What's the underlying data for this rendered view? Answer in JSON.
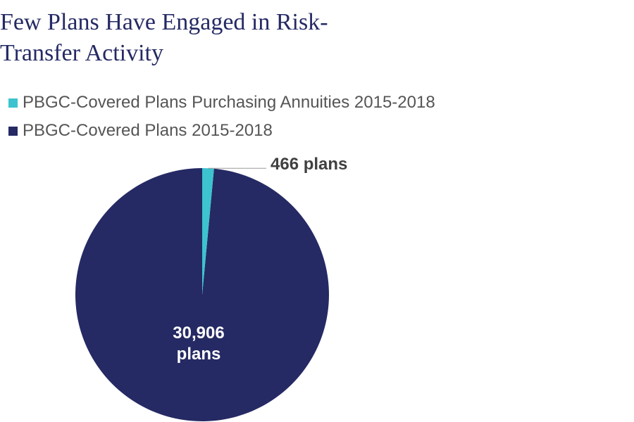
{
  "title_lines": [
    "Few Plans Have Engaged in Risk-",
    "Transfer Activity"
  ],
  "chart_data": {
    "type": "pie",
    "title": "Few Plans Have Engaged in Risk-Transfer Activity",
    "series": [
      {
        "name": "PBGC-Covered Plans Purchasing Annuities 2015-2018",
        "value": 466,
        "label": "466 plans",
        "color": "#3cc3cf"
      },
      {
        "name": "PBGC-Covered Plans 2015-2018",
        "value": 30906,
        "label_lines": [
          "30,906",
          "plans"
        ],
        "color": "#252a64"
      }
    ],
    "legend": "top-left",
    "start_angle_deg": 0,
    "direction": "clockwise"
  },
  "colors": {
    "title": "#252a64",
    "legend_text": "#555555",
    "outer_label": "#404040",
    "inner_label": "#ffffff",
    "leader_line": "#9a9a9a"
  }
}
